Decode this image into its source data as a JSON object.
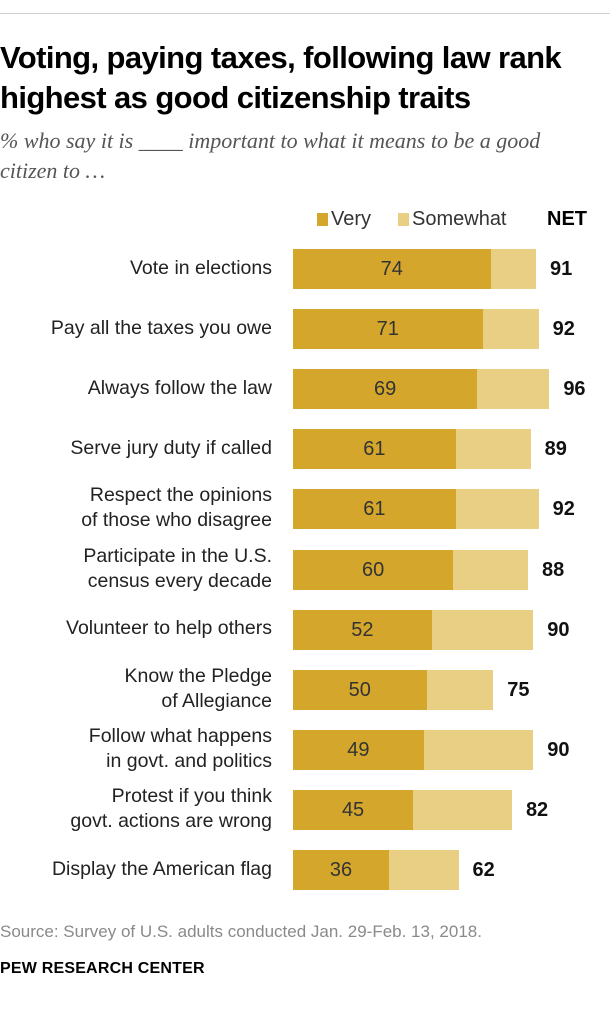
{
  "title": "Voting, paying taxes, following law rank highest as good citizenship traits",
  "subtitle": "% who say it is ____ important to what it means to be a good citizen to …",
  "legend": {
    "very": "Very",
    "somewhat": "Somewhat",
    "net": "NET"
  },
  "colors": {
    "very": "#d4a72c",
    "somewhat": "#e9cf84"
  },
  "chart_data": {
    "type": "bar",
    "orientation": "horizontal",
    "stacked": true,
    "title": "Voting, paying taxes, following law rank highest as good citizenship traits",
    "subtitle": "% who say it is ____ important to what it means to be a good citizen to …",
    "xlim": [
      0,
      100
    ],
    "categories": [
      [
        "Vote in elections"
      ],
      [
        "Pay all the taxes you owe"
      ],
      [
        "Always follow the law"
      ],
      [
        "Serve jury duty if called"
      ],
      [
        "Respect the opinions",
        "of those who disagree"
      ],
      [
        "Participate in the U.S.",
        "census every decade"
      ],
      [
        "Volunteer to help others"
      ],
      [
        "Know the Pledge",
        "of Allegiance"
      ],
      [
        "Follow what happens",
        "in govt. and politics"
      ],
      [
        "Protest if you think",
        "govt. actions are wrong"
      ],
      [
        "Display the American flag"
      ]
    ],
    "series": [
      {
        "name": "Very",
        "values": [
          74,
          71,
          69,
          61,
          61,
          60,
          52,
          50,
          49,
          45,
          36
        ]
      },
      {
        "name": "Somewhat",
        "values": [
          17,
          21,
          27,
          28,
          31,
          28,
          38,
          25,
          41,
          37,
          26
        ]
      }
    ],
    "net": [
      91,
      92,
      96,
      89,
      92,
      88,
      90,
      75,
      90,
      82,
      62
    ]
  },
  "source": "Source: Survey of U.S. adults conducted Jan. 29-Feb. 13, 2018.",
  "credit": "PEW RESEARCH CENTER"
}
